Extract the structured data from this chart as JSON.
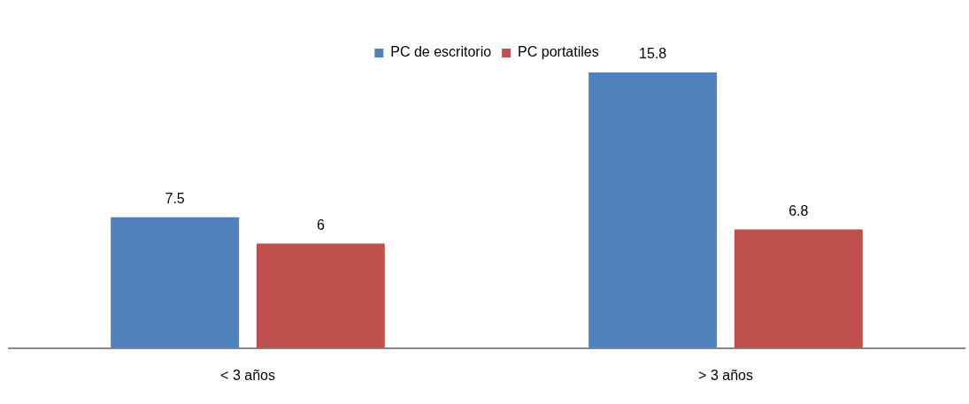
{
  "chart_data": {
    "type": "bar",
    "categories": [
      "< 3 años",
      "> 3 años"
    ],
    "series": [
      {
        "name": "PC de escritorio",
        "color": "#4f81bd",
        "values": [
          7.5,
          15.8
        ]
      },
      {
        "name": "PC portatiles",
        "color": "#c0504d",
        "values": [
          6,
          6.8
        ]
      }
    ],
    "data_labels": true,
    "legend": "top",
    "grid": false
  }
}
